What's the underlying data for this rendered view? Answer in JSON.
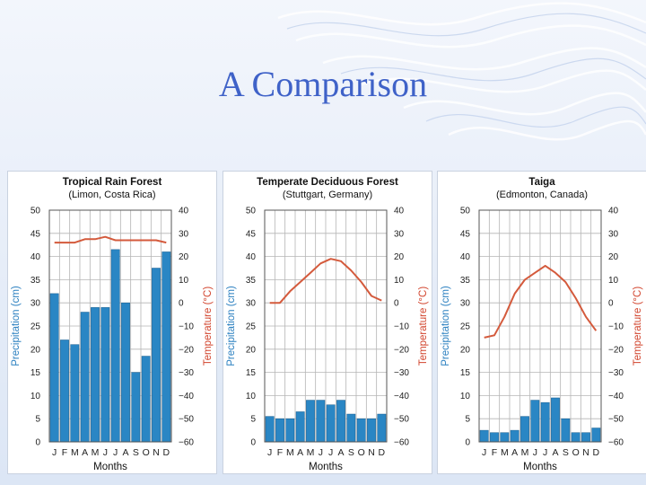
{
  "slide": {
    "title": "A Comparison"
  },
  "chart_data": [
    {
      "type": "bar",
      "title": "Tropical Rain Forest",
      "subtitle": "(Limon, Costa Rica)",
      "xlabel": "Months",
      "ylabel": "Precipitation (cm)",
      "y2label": "Temperature (°C)",
      "categories": [
        "J",
        "F",
        "M",
        "A",
        "M",
        "J",
        "J",
        "A",
        "S",
        "O",
        "N",
        "D"
      ],
      "ylim": [
        0,
        50
      ],
      "y_ticks": [
        0,
        5,
        10,
        15,
        20,
        25,
        30,
        35,
        40,
        45,
        50
      ],
      "y2lim": [
        -60,
        40
      ],
      "y2_ticks": [
        -60,
        -50,
        -40,
        -30,
        -20,
        -10,
        0,
        10,
        20,
        30,
        40
      ],
      "grid": true,
      "series": [
        {
          "values": [
            32,
            22,
            21,
            28,
            29,
            29,
            41.5,
            30,
            15,
            18.5,
            37.5,
            41
          ]
        },
        {
          "values": [
            26,
            26,
            26,
            27.5,
            27.5,
            28.5,
            27,
            27,
            27,
            27,
            27,
            26
          ]
        }
      ],
      "colors": {
        "bar": "#2a86c4",
        "line": "#d45a3c"
      }
    },
    {
      "type": "bar",
      "title": "Temperate Deciduous Forest",
      "subtitle": "(Stuttgart, Germany)",
      "xlabel": "Months",
      "ylabel": "Precipitation (cm)",
      "y2label": "Temperature (°C)",
      "categories": [
        "J",
        "F",
        "M",
        "A",
        "M",
        "J",
        "J",
        "A",
        "S",
        "O",
        "N",
        "D"
      ],
      "ylim": [
        0,
        50
      ],
      "y_ticks": [
        0,
        5,
        10,
        15,
        20,
        25,
        30,
        35,
        40,
        45,
        50
      ],
      "y2lim": [
        -60,
        40
      ],
      "y2_ticks": [
        -60,
        -50,
        -40,
        -30,
        -20,
        -10,
        0,
        10,
        20,
        30,
        40
      ],
      "grid": true,
      "series": [
        {
          "values": [
            5.5,
            5,
            5,
            6.5,
            9,
            9,
            8,
            9,
            6,
            5,
            5,
            6
          ]
        },
        {
          "values": [
            0,
            0,
            5,
            9,
            13,
            17,
            19,
            18,
            14,
            9,
            3,
            1
          ]
        }
      ],
      "colors": {
        "bar": "#2a86c4",
        "line": "#d45a3c"
      }
    },
    {
      "type": "bar",
      "title": "Taiga",
      "subtitle": "(Edmonton, Canada)",
      "xlabel": "Months",
      "ylabel": "Precipitation (cm)",
      "y2label": "Temperature (°C)",
      "categories": [
        "J",
        "F",
        "M",
        "A",
        "M",
        "J",
        "J",
        "A",
        "S",
        "O",
        "N",
        "D"
      ],
      "ylim": [
        0,
        50
      ],
      "y_ticks": [
        0,
        5,
        10,
        15,
        20,
        25,
        30,
        35,
        40,
        45,
        50
      ],
      "y2lim": [
        -60,
        40
      ],
      "y2_ticks": [
        -60,
        -50,
        -40,
        -30,
        -20,
        -10,
        0,
        10,
        20,
        30,
        40
      ],
      "grid": true,
      "series": [
        {
          "values": [
            2.5,
            2,
            2,
            2.5,
            5.5,
            9,
            8.5,
            9.5,
            5,
            2,
            2,
            3
          ]
        },
        {
          "values": [
            -15,
            -14,
            -6,
            4,
            10,
            13,
            16,
            13,
            9,
            2,
            -6,
            -12
          ]
        }
      ],
      "colors": {
        "bar": "#2a86c4",
        "line": "#d45a3c"
      }
    }
  ]
}
